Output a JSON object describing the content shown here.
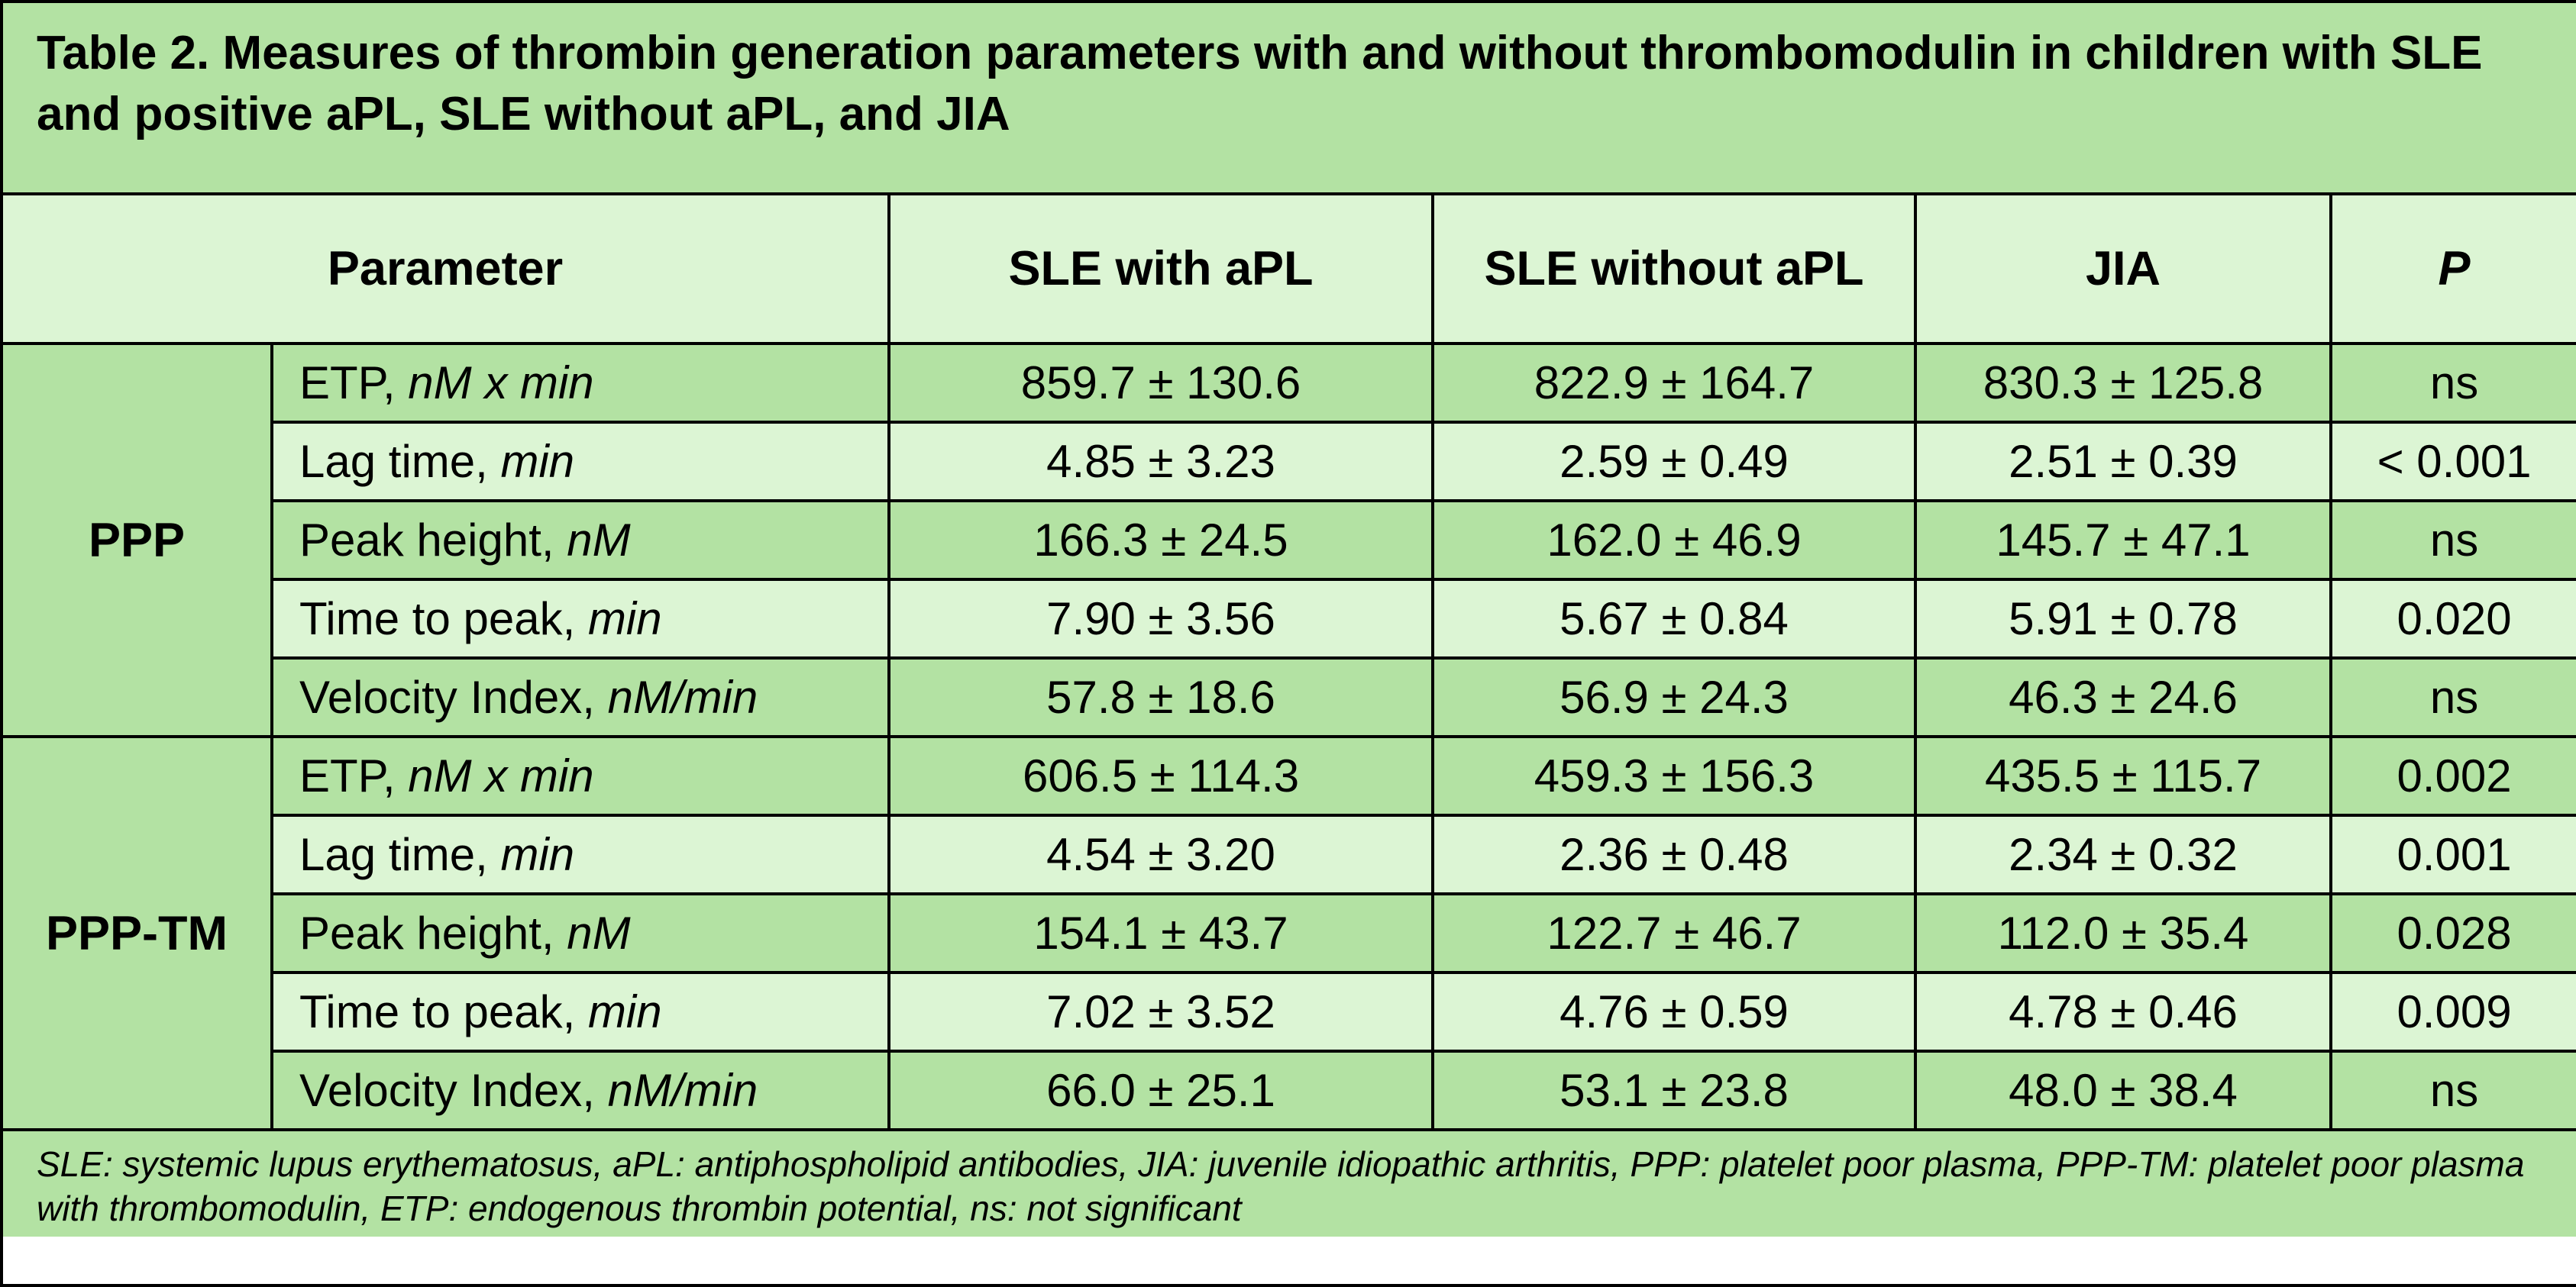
{
  "title": "Table 2. Measures of thrombin generation parameters with and without thrombomodulin in children with SLE and positive aPL, SLE without aPL, and JIA",
  "headers": {
    "parameter": "Parameter",
    "sle_apl": "SLE with aPL",
    "sle_no_apl": "SLE without aPL",
    "jia": "JIA",
    "p": "P"
  },
  "groups": [
    {
      "name": "PPP",
      "rows": [
        {
          "label": "ETP, ",
          "unit": "nM x min",
          "sle_apl": "859.7 ± 130.6",
          "sle_no_apl": "822.9 ± 164.7",
          "jia": "830.3 ± 125.8",
          "p": "ns"
        },
        {
          "label": "Lag time, ",
          "unit": "min",
          "sle_apl": "4.85 ± 3.23",
          "sle_no_apl": "2.59 ± 0.49",
          "jia": "2.51 ± 0.39",
          "p": "< 0.001"
        },
        {
          "label": "Peak height, ",
          "unit": "nM",
          "sle_apl": "166.3 ± 24.5",
          "sle_no_apl": "162.0 ± 46.9",
          "jia": "145.7 ± 47.1",
          "p": "ns"
        },
        {
          "label": "Time to peak, ",
          "unit": "min",
          "sle_apl": "7.90 ± 3.56",
          "sle_no_apl": "5.67 ± 0.84",
          "jia": "5.91 ± 0.78",
          "p": "0.020"
        },
        {
          "label": "Velocity Index, ",
          "unit": "nM/min",
          "sle_apl": "57.8 ± 18.6",
          "sle_no_apl": "56.9 ± 24.3",
          "jia": "46.3 ± 24.6",
          "p": "ns"
        }
      ]
    },
    {
      "name": "PPP-TM",
      "rows": [
        {
          "label": "ETP, ",
          "unit": "nM x min",
          "sle_apl": "606.5 ± 114.3",
          "sle_no_apl": "459.3 ± 156.3",
          "jia": "435.5 ± 115.7",
          "p": "0.002"
        },
        {
          "label": "Lag time, ",
          "unit": "min",
          "sle_apl": "4.54 ± 3.20",
          "sle_no_apl": "2.36 ± 0.48",
          "jia": "2.34 ± 0.32",
          "p": "0.001"
        },
        {
          "label": "Peak height, ",
          "unit": "nM",
          "sle_apl": "154.1 ± 43.7",
          "sle_no_apl": "122.7 ± 46.7",
          "jia": "112.0 ± 35.4",
          "p": "0.028"
        },
        {
          "label": "Time to peak, ",
          "unit": "min",
          "sle_apl": "7.02 ± 3.52",
          "sle_no_apl": "4.76 ± 0.59",
          "jia": "4.78 ± 0.46",
          "p": "0.009"
        },
        {
          "label": "Velocity Index, ",
          "unit": "nM/min",
          "sle_apl": "66.0 ± 25.1",
          "sle_no_apl": "53.1 ± 23.8",
          "jia": "48.0 ± 38.4",
          "p": "ns"
        }
      ]
    }
  ],
  "footnote": "SLE: systemic lupus erythematosus, aPL: antiphospholipid antibodies, JIA: juvenile idiopathic arthritis, PPP: platelet poor plasma, PPP-TM: platelet poor plasma with thrombomodulin, ETP: endogenous thrombin potential, ns: not significant",
  "colors": {
    "dark_green": "#b3e2a3",
    "light_green": "#dcf5d4",
    "border": "#000000"
  }
}
